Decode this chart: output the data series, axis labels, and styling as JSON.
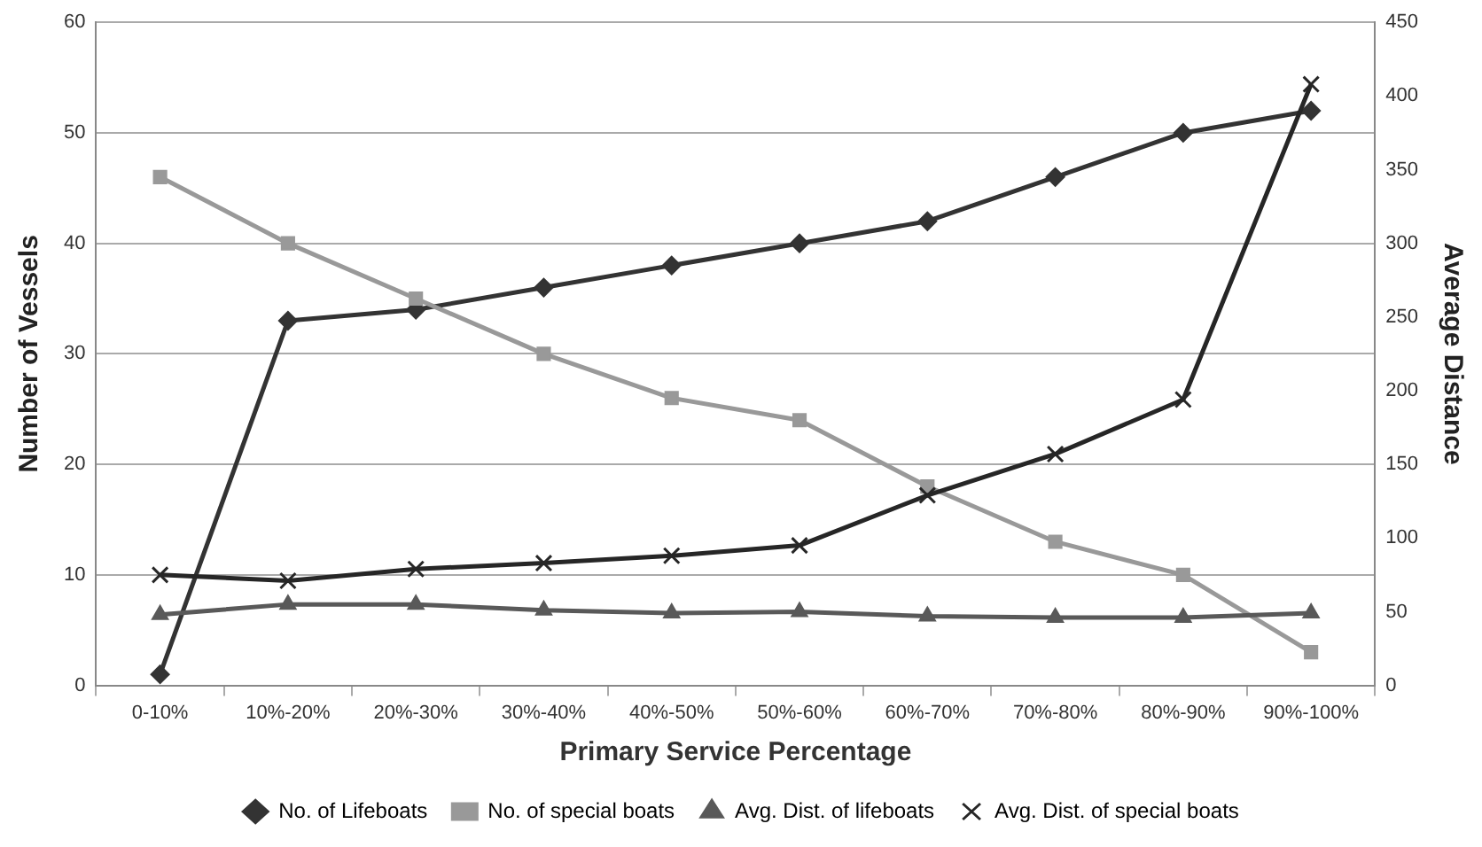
{
  "chart_data": {
    "type": "line",
    "xlabel": "Primary Service Percentage",
    "ylabel": "Number of Vessels",
    "y2label": "Average Distance",
    "categories": [
      "0-10%",
      "10%-20%",
      "20%-30%",
      "30%-40%",
      "40%-50%",
      "50%-60%",
      "60%-70%",
      "70%-80%",
      "80%-90%",
      "90%-100%"
    ],
    "series": [
      {
        "name": "No. of Lifeboats",
        "color": "#333333",
        "marker": "diamond",
        "values": [
          1,
          33,
          34,
          36,
          38,
          40,
          42,
          46,
          50,
          52
        ]
      },
      {
        "name": "No. of special boats",
        "color": "#999999",
        "marker": "square",
        "values": [
          46,
          40,
          35,
          30,
          26,
          24,
          18,
          13,
          10,
          3
        ]
      },
      {
        "name": "Avg. Dist. of lifeboats",
        "color": "#595959",
        "marker": "triangle",
        "axis": "y2",
        "values": [
          48,
          55,
          55,
          51,
          49,
          50,
          47,
          46,
          46,
          49
        ]
      },
      {
        "name": "Avg. Dist. of special boats",
        "color": "#262626",
        "marker": "cross",
        "axis": "y2",
        "values": [
          75,
          71,
          79,
          83,
          88,
          95,
          129,
          157,
          194,
          408
        ]
      }
    ],
    "ylim": [
      0,
      60
    ],
    "yticks": [
      0,
      10,
      20,
      30,
      40,
      50,
      60
    ],
    "y2lim": [
      0,
      450
    ],
    "y2ticks": [
      0,
      50,
      100,
      150,
      200,
      250,
      300,
      350,
      400,
      450
    ],
    "grid": "y",
    "legend": "bottom",
    "line_style": "solid"
  }
}
